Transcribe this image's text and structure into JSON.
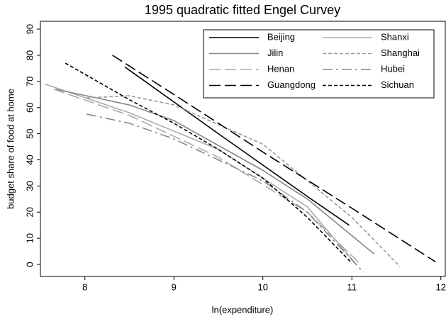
{
  "chart_data": {
    "type": "line",
    "title": "1995 quadratic fitted Engel Curvey",
    "xlabel": "ln(expenditure)",
    "ylabel": "budget share of food at home",
    "xlim": [
      7.5,
      12.05
    ],
    "xticks": [
      8,
      9,
      10,
      11,
      12
    ],
    "ylim": [
      -4.6,
      93
    ],
    "yticks": [
      0,
      10,
      20,
      30,
      40,
      50,
      60,
      70,
      80,
      90
    ],
    "legend": "top-right",
    "series": [
      {
        "name": "Beijing",
        "color": "#000000",
        "dash": "solid",
        "x": [
          8.45,
          9.5,
          10.5,
          10.97
        ],
        "values": [
          75.5,
          50,
          26,
          15
        ]
      },
      {
        "name": "Shanxi",
        "color": "#aaaaaa",
        "dash": "solid",
        "x": [
          7.55,
          8.5,
          9.5,
          10.5,
          11.05
        ],
        "values": [
          69,
          58,
          44,
          22,
          0
        ]
      },
      {
        "name": "Jilin",
        "color": "#888888",
        "dash": "solid",
        "x": [
          7.67,
          8.5,
          9,
          10,
          10.5,
          11.25
        ],
        "values": [
          67,
          61,
          55,
          36,
          25,
          4
        ]
      },
      {
        "name": "Shanghai",
        "color": "#999999",
        "dash": "short",
        "x": [
          8.02,
          8.5,
          9,
          10,
          11,
          11.54
        ],
        "values": [
          63.7,
          64.5,
          61,
          46,
          18,
          -0.8
        ]
      },
      {
        "name": "Henan",
        "color": "#aaaaaa",
        "dash": "long",
        "x": [
          7.65,
          8.5,
          9.5,
          10.5,
          11.1
        ],
        "values": [
          67,
          57,
          41,
          20,
          0
        ]
      },
      {
        "name": "Hubei",
        "color": "#888888",
        "dash": "dashdot",
        "x": [
          8.02,
          8.5,
          9,
          10,
          10.5,
          11.13
        ],
        "values": [
          57.5,
          54,
          48,
          32,
          20,
          -3
        ]
      },
      {
        "name": "Guangdong",
        "color": "#000000",
        "dash": "long",
        "x": [
          8.31,
          9,
          10,
          11,
          11.94
        ],
        "values": [
          80,
          65,
          43,
          21.5,
          1
        ]
      },
      {
        "name": "Sichuan",
        "color": "#000000",
        "dash": "short",
        "x": [
          7.78,
          8.5,
          9,
          9.5,
          10,
          10.5,
          11
        ],
        "values": [
          77,
          63,
          54,
          44,
          33,
          18,
          0.5
        ]
      }
    ]
  }
}
